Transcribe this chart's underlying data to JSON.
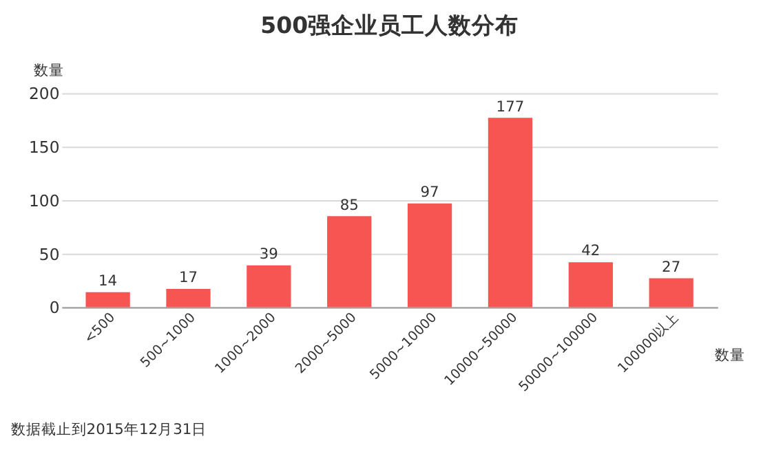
{
  "chart_data": {
    "type": "bar",
    "title": "500强企业员工人数分布",
    "ylabel": "数量",
    "xlabel": "数量",
    "categories": [
      "<500",
      "500~1000",
      "1000~2000",
      "2000~5000",
      "5000~10000",
      "10000~50000",
      "50000~100000",
      "100000以上"
    ],
    "values": [
      14,
      17,
      39,
      85,
      97,
      177,
      42,
      27
    ],
    "color": "#f75552",
    "ylim": [
      0,
      200
    ],
    "yticks": [
      0,
      50,
      100,
      150,
      200
    ],
    "grid": "y",
    "data_labels": true,
    "annotations": [
      "数据截止到2015年12月31日"
    ]
  }
}
